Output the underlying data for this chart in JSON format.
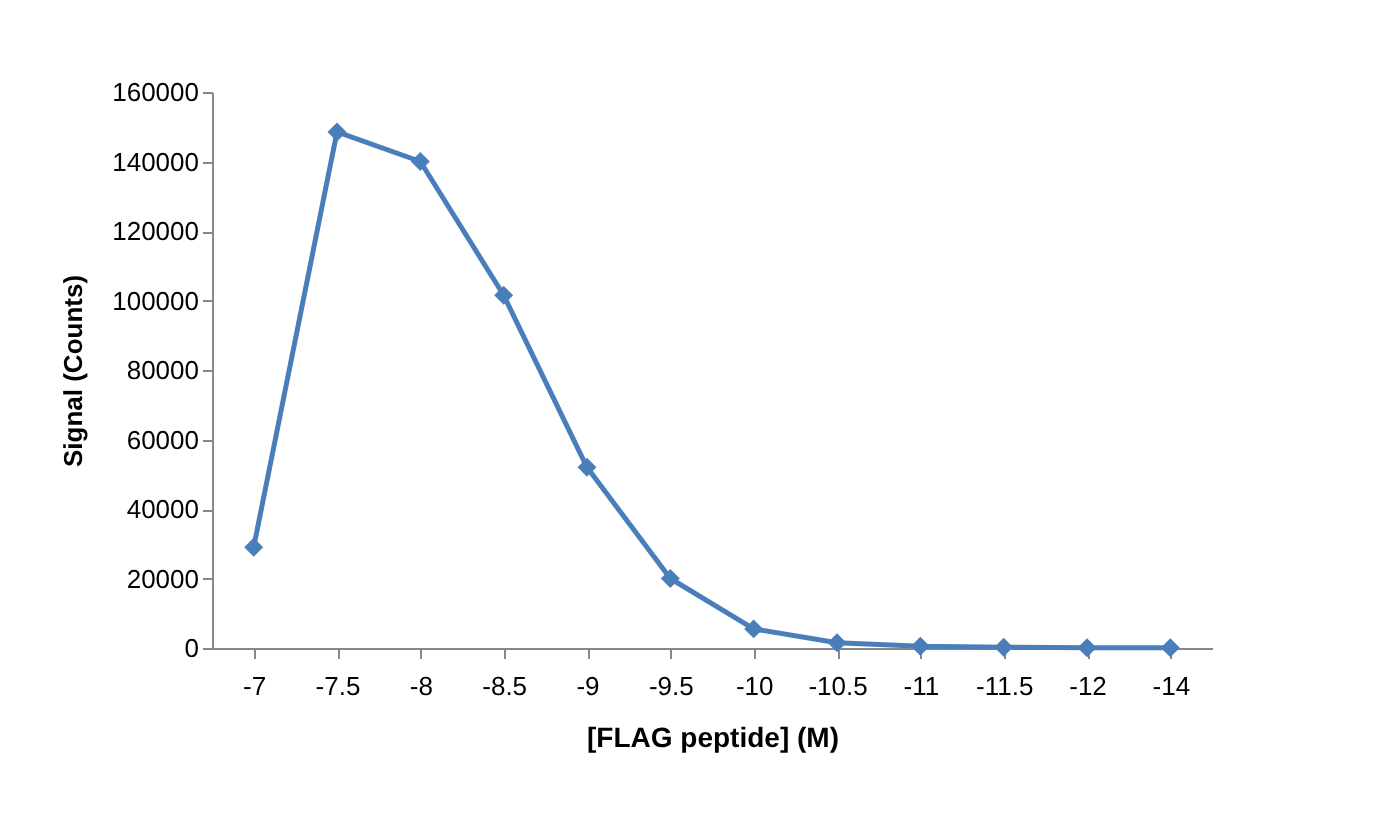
{
  "chart_data": {
    "type": "line",
    "xlabel": "[FLAG peptide] (M)",
    "ylabel": "Signal (Counts)",
    "categories": [
      "-7",
      "-7.5",
      "-8",
      "-8.5",
      "-9",
      "-9.5",
      "-10",
      "-10.5",
      "-11",
      "-11.5",
      "-12",
      "-14"
    ],
    "series": [
      {
        "color": "#4a7ebb",
        "values": [
          29000,
          148500,
          140000,
          101500,
          52000,
          20000,
          5500,
          1500,
          500,
          200,
          100,
          100
        ]
      }
    ],
    "ylim": [
      0,
      160000
    ],
    "yticks": [
      0,
      20000,
      40000,
      60000,
      80000,
      100000,
      120000,
      140000,
      160000
    ],
    "marker": "diamond",
    "line_style": "solid",
    "grid": false,
    "legend": false
  }
}
